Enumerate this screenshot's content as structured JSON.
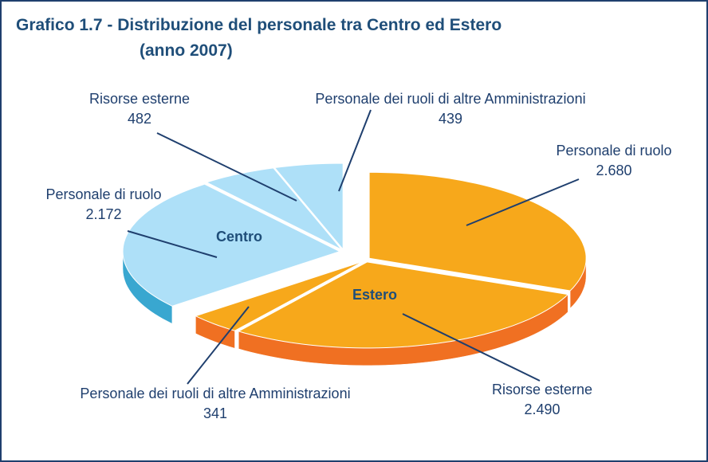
{
  "chart_data": {
    "type": "pie3d",
    "title": "Grafico 1.7 - Distribuzione del personale tra Centro ed Estero",
    "subtitle": "(anno 2007)",
    "series": [
      {
        "name": "Centro",
        "color": "#aee0f8",
        "side_color": "#39a7d0",
        "categories": [
          "Personale di ruolo",
          "Risorse esterne",
          "Personale dei ruoli di altre Amministrazioni"
        ],
        "values": [
          2172,
          482,
          439
        ],
        "value_labels": [
          "2.172",
          "482",
          "439"
        ]
      },
      {
        "name": "Estero",
        "color": "#f7a81b",
        "side_color": "#f07022",
        "categories": [
          "Personale di ruolo",
          "Risorse esterne",
          "Personale dei ruoli di altre Amministrazioni"
        ],
        "values": [
          2680,
          2490,
          341
        ],
        "value_labels": [
          "2.680",
          "2.490",
          "341"
        ]
      }
    ]
  }
}
